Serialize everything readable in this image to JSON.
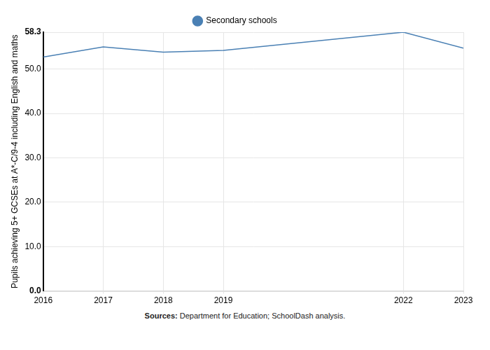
{
  "chart_data": {
    "type": "line",
    "y_label": "Pupils achieving 5+ GCSEs at A*-C/9-4 including English and maths",
    "x": [
      2016,
      2017,
      2018,
      2019,
      2022,
      2023
    ],
    "series": [
      {
        "name": "Secondary schools",
        "color": "#4a80b4",
        "values": [
          52.7,
          55.0,
          53.8,
          54.2,
          58.3,
          54.7
        ]
      }
    ],
    "xlim": [
      2016,
      2023
    ],
    "xticks": [
      2016,
      2017,
      2018,
      2019,
      2022,
      2023
    ],
    "ylim": [
      0,
      58.3
    ],
    "yticks": [
      {
        "value": 0,
        "label": "0.0"
      },
      {
        "value": 10,
        "label": "10.0"
      },
      {
        "value": 20,
        "label": "20.0"
      },
      {
        "value": 30,
        "label": "30.0"
      },
      {
        "value": 40,
        "label": "40.0"
      },
      {
        "value": 50,
        "label": "50.0"
      },
      58.3
    ],
    "grid": true,
    "legend": "top",
    "marker": "none",
    "source_label": "Sources:",
    "source": "Department for Education; SchoolDash analysis."
  }
}
